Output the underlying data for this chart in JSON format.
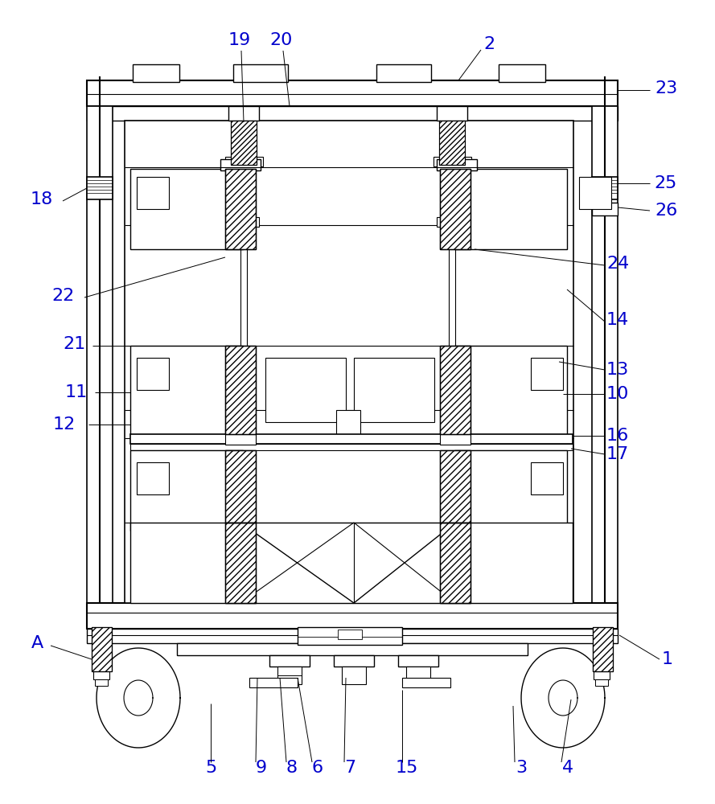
{
  "fig_width": 8.89,
  "fig_height": 10.0,
  "bg_color": "#ffffff",
  "line_color": "#000000"
}
